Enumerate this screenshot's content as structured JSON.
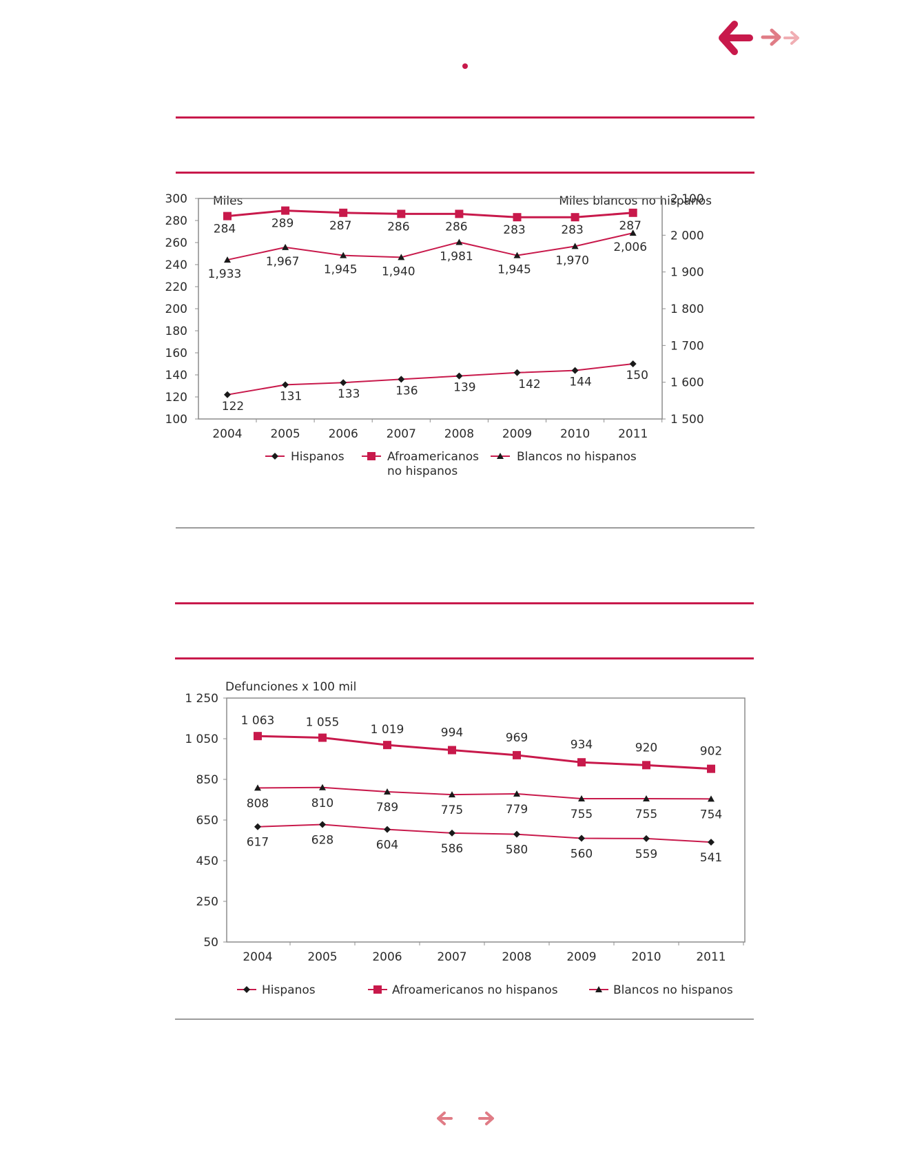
{
  "colors": {
    "accent": "#c8194b",
    "accent_light": "#e5848f",
    "marker": "#1a1a1a",
    "axis": "#8c8c8c"
  },
  "nav": {
    "top_back_icon": "arrow-left-icon",
    "top_forward_icons": [
      "arrow-right-icon",
      "arrow-right-icon"
    ],
    "bottom_prev_icon": "arrow-left-icon",
    "bottom_next_icon": "arrow-right-icon"
  },
  "chart_data": [
    {
      "type": "line",
      "ylabel": "Miles",
      "y2label": "Miles blancos no hispanos",
      "categories": [
        "2004",
        "2005",
        "2006",
        "2007",
        "2008",
        "2009",
        "2010",
        "2011"
      ],
      "ylim": [
        100,
        300
      ],
      "yticks": [
        "300",
        "280",
        "260",
        "240",
        "220",
        "200",
        "180",
        "160",
        "140",
        "120",
        "100"
      ],
      "y2lim": [
        1500,
        2100
      ],
      "y2ticks": [
        "2 100",
        "2 000",
        "1 900",
        "1 800",
        "1 700",
        "1 600",
        "1 500"
      ],
      "series": [
        {
          "name": "Hispanos",
          "marker": "diamond",
          "axis": "left",
          "values": [
            122,
            131,
            133,
            136,
            139,
            142,
            144,
            150
          ],
          "labels": [
            "122",
            "131",
            "133",
            "136",
            "139",
            "142",
            "144",
            "150"
          ]
        },
        {
          "name": "Afroamericanos no hispanos",
          "marker": "square",
          "axis": "left",
          "values": [
            284,
            289,
            287,
            286,
            286,
            283,
            283,
            287
          ],
          "labels": [
            "284",
            "289",
            "287",
            "286",
            "286",
            "283",
            "283",
            "287"
          ]
        },
        {
          "name": "Blancos no hispanos",
          "marker": "triangle",
          "axis": "right",
          "values": [
            1933,
            1967,
            1945,
            1940,
            1981,
            1945,
            1970,
            2006
          ],
          "labels": [
            "1,933",
            "1,967",
            "1,945",
            "1,940",
            "1,981",
            "1,945",
            "1,970",
            "2,006"
          ]
        }
      ],
      "legend": [
        "Hispanos",
        "Afroamericanos no hispanos",
        "Blancos no hispanos"
      ],
      "legend_position": "bottom",
      "grid": false
    },
    {
      "type": "line",
      "ylabel": "Defunciones x  100 mil",
      "categories": [
        "2004",
        "2005",
        "2006",
        "2007",
        "2008",
        "2009",
        "2010",
        "2011"
      ],
      "ylim": [
        50,
        1250
      ],
      "yticks": [
        "1 250",
        "1 050",
        "850",
        "650",
        "450",
        "250",
        "50"
      ],
      "series": [
        {
          "name": "Hispanos",
          "marker": "diamond",
          "values": [
            617,
            628,
            604,
            586,
            580,
            560,
            559,
            541
          ],
          "labels": [
            "617",
            "628",
            "604",
            "586",
            "580",
            "560",
            "559",
            "541"
          ]
        },
        {
          "name": "Afroamericanos no hispanos",
          "marker": "square",
          "values": [
            1063,
            1055,
            1019,
            994,
            969,
            934,
            920,
            902
          ],
          "labels": [
            "1 063",
            "1 055",
            "1 019",
            "994",
            "969",
            "934",
            "920",
            "902"
          ]
        },
        {
          "name": "Blancos no hispanos",
          "marker": "triangle",
          "values": [
            808,
            810,
            789,
            775,
            779,
            755,
            755,
            754
          ],
          "labels": [
            "808",
            "810",
            "789",
            "775",
            "779",
            "755",
            "755",
            "754"
          ]
        }
      ],
      "legend": [
        "Hispanos",
        "Afroamericanos no hispanos",
        "Blancos no hispanos"
      ],
      "legend_position": "bottom",
      "grid": false
    }
  ]
}
